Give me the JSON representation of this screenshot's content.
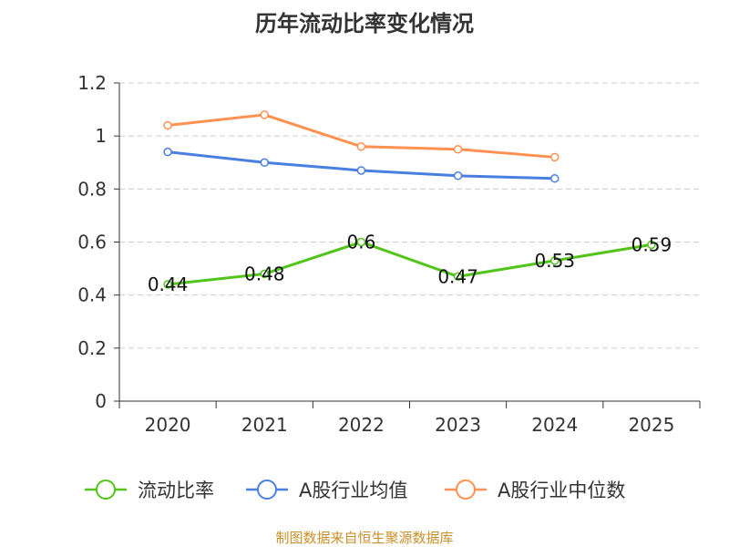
{
  "chart_data": {
    "type": "line",
    "title": "历年流动比率变化情况",
    "categories": [
      "2020",
      "2021",
      "2022",
      "2023",
      "2024",
      "2025"
    ],
    "ylim": [
      0,
      1.2
    ],
    "yticks": [
      "0",
      "0.2",
      "0.4",
      "0.6",
      "0.8",
      "1",
      "1.2"
    ],
    "grid": true,
    "legend_position": "bottom",
    "series": [
      {
        "name": "流动比率",
        "color": "#52c41a",
        "values": [
          0.44,
          0.48,
          0.6,
          0.47,
          0.53,
          0.59
        ],
        "labels": [
          "0.44",
          "0.48",
          "0.6",
          "0.47",
          "0.53",
          "0.59"
        ]
      },
      {
        "name": "A股行业均值",
        "color": "#4a7fe0",
        "values": [
          0.94,
          0.9,
          0.87,
          0.85,
          0.84,
          null
        ]
      },
      {
        "name": "A股行业中位数",
        "color": "#ff9152",
        "values": [
          1.04,
          1.08,
          0.96,
          0.95,
          0.92,
          null
        ]
      }
    ]
  },
  "source": "制图数据来自恒生聚源数据库"
}
